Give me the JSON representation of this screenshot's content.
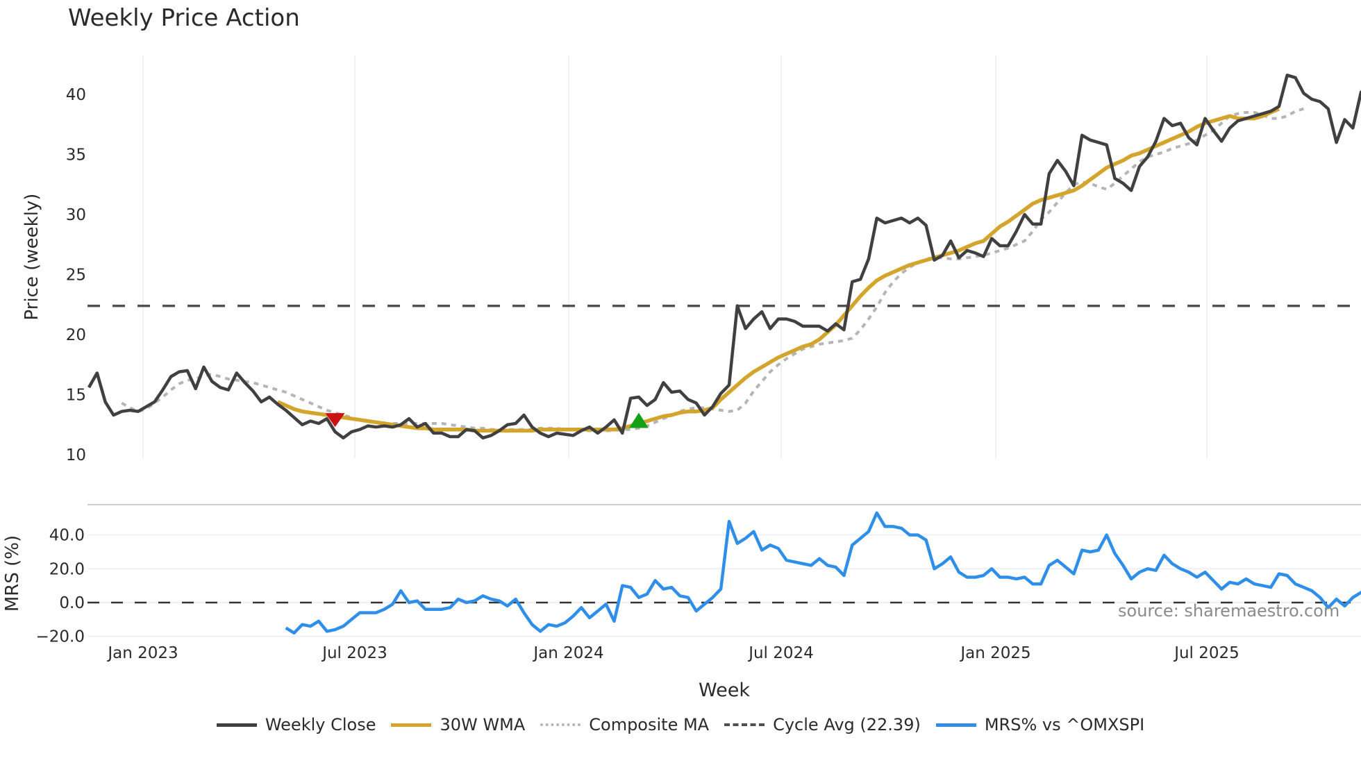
{
  "title": "Weekly Price Action",
  "source_note": "source: sharemaestro.com",
  "colors": {
    "weekly_close": "#404040",
    "wma": "#d4a52c",
    "composite_ma": "#b5b5b5",
    "cycle_avg": "#505050",
    "mrs": "#2f8fe8",
    "signal_sell": "#cc1111",
    "signal_buy": "#14a014",
    "grid": "#eef0f5"
  },
  "legend": [
    {
      "key": "weekly_close",
      "label": "Weekly Close",
      "style": "solid"
    },
    {
      "key": "wma",
      "label": "30W WMA",
      "style": "solid"
    },
    {
      "key": "composite_ma",
      "label": "Composite MA",
      "style": "dotted"
    },
    {
      "key": "cycle_avg",
      "label": "Cycle Avg (22.39)",
      "style": "dashed"
    },
    {
      "key": "mrs",
      "label": "MRS% vs ^OMXSPI",
      "style": "solid"
    }
  ],
  "chart_data": [
    {
      "type": "line",
      "title": "Weekly Price Action",
      "xlabel": "Week",
      "ylabel": "Price (weekly)",
      "ylim": [
        10,
        43
      ],
      "yticks": [
        10,
        15,
        20,
        25,
        30,
        35,
        40
      ],
      "xticks": [
        "Jan 2023",
        "Jul 2023",
        "Jan 2024",
        "Jul 2024",
        "Jan 2025",
        "Jul 2025"
      ],
      "grid": true,
      "x_start_week_offset": -7,
      "cycle_avg": 22.39,
      "series": [
        {
          "name": "Weekly Close",
          "values": [
            15.6,
            16.8,
            14.4,
            13.3,
            13.6,
            13.7,
            13.6,
            14.0,
            14.4,
            15.4,
            16.5,
            16.9,
            17.0,
            15.5,
            17.3,
            16.1,
            15.6,
            15.4,
            16.8,
            16.0,
            15.3,
            14.4,
            14.8,
            14.2,
            13.7,
            13.1,
            12.5,
            12.8,
            12.6,
            13.0,
            11.9,
            11.4,
            11.9,
            12.1,
            12.4,
            12.3,
            12.4,
            12.3,
            12.5,
            13.0,
            12.3,
            12.6,
            11.8,
            11.8,
            11.5,
            11.5,
            12.1,
            12.0,
            11.4,
            11.6,
            12.0,
            12.5,
            12.6,
            13.3,
            12.3,
            11.8,
            11.5,
            11.8,
            11.7,
            11.6,
            12.0,
            12.3,
            11.8,
            12.3,
            12.9,
            11.8,
            14.7,
            14.8,
            14.1,
            14.6,
            16.0,
            15.2,
            15.3,
            14.6,
            14.3,
            13.3,
            14.0,
            15.1,
            15.8,
            22.4,
            20.5,
            21.3,
            21.9,
            20.5,
            21.3,
            21.3,
            21.1,
            20.7,
            20.7,
            20.7,
            20.3,
            20.9,
            20.4,
            24.4,
            24.6,
            26.3,
            29.7,
            29.3,
            29.5,
            29.7,
            29.3,
            29.7,
            29.1,
            26.2,
            26.6,
            27.8,
            26.4,
            27.0,
            26.8,
            26.5,
            28.0,
            27.4,
            27.4,
            28.6,
            30.0,
            29.2,
            29.2,
            33.4,
            34.5,
            33.6,
            32.4,
            36.6,
            36.2,
            36.0,
            35.8,
            33.0,
            32.6,
            32.0,
            34.0,
            34.8,
            36.1,
            38.0,
            37.4,
            37.6,
            36.4,
            35.8,
            38.0,
            37.0,
            36.1,
            37.2,
            37.8,
            38.0,
            38.2,
            38.4,
            38.6,
            39.0,
            41.6,
            41.4,
            40.1,
            39.6,
            39.4,
            38.8,
            36.0,
            37.9,
            37.2,
            40.2,
            40.4,
            40.8
          ]
        },
        {
          "name": "30W WMA",
          "start_index": 23,
          "values": [
            14.4,
            14.1,
            13.8,
            13.6,
            13.5,
            13.4,
            13.3,
            13.2,
            13.1,
            13.0,
            12.9,
            12.8,
            12.7,
            12.6,
            12.5,
            12.4,
            12.3,
            12.2,
            12.2,
            12.1,
            12.1,
            12.1,
            12.1,
            12.1,
            12.0,
            12.0,
            12.0,
            12.0,
            12.0,
            12.0,
            12.0,
            12.0,
            12.1,
            12.1,
            12.1,
            12.1,
            12.1,
            12.1,
            12.1,
            12.1,
            12.1,
            12.1,
            12.2,
            12.4,
            12.6,
            12.8,
            13.0,
            13.2,
            13.3,
            13.5,
            13.6,
            13.6,
            13.7,
            13.9,
            14.6,
            15.2,
            15.8,
            16.4,
            16.9,
            17.3,
            17.7,
            18.1,
            18.4,
            18.7,
            19.0,
            19.2,
            19.6,
            20.2,
            20.8,
            21.6,
            22.4,
            23.2,
            23.9,
            24.5,
            24.9,
            25.2,
            25.5,
            25.8,
            26.0,
            26.2,
            26.4,
            26.6,
            26.8,
            27.0,
            27.3,
            27.6,
            27.8,
            28.4,
            29.0,
            29.4,
            29.9,
            30.4,
            30.9,
            31.2,
            31.4,
            31.6,
            31.8,
            32.0,
            32.4,
            32.9,
            33.4,
            33.9,
            34.2,
            34.5,
            34.9,
            35.1,
            35.4,
            35.7,
            36.0,
            36.3,
            36.6,
            36.9,
            37.3,
            37.6,
            37.8,
            38.0,
            38.2,
            38.0,
            38.0,
            38.0,
            38.2,
            38.5,
            38.8
          ]
        },
        {
          "name": "Composite MA",
          "start_index": 4,
          "values": [
            14.3,
            13.9,
            13.6,
            13.8,
            14.3,
            14.8,
            15.4,
            15.9,
            16.2,
            16.3,
            16.6,
            16.7,
            16.5,
            16.3,
            16.2,
            16.1,
            16.0,
            15.8,
            15.6,
            15.4,
            15.2,
            14.9,
            14.6,
            14.3,
            14.0,
            13.7,
            13.5,
            13.3,
            13.1,
            12.9,
            12.8,
            12.7,
            12.6,
            12.6,
            12.6,
            12.6,
            12.6,
            12.6,
            12.6,
            12.6,
            12.5,
            12.4,
            12.3,
            12.2,
            12.2,
            12.1,
            12.1,
            12.1,
            12.1,
            12.1,
            12.1,
            12.2,
            12.2,
            12.2,
            12.1,
            12.1,
            12.0,
            12.0,
            12.0,
            12.0,
            12.0,
            12.1,
            12.1,
            12.2,
            12.4,
            12.7,
            13.0,
            13.3,
            13.6,
            13.8,
            13.9,
            13.9,
            13.8,
            13.7,
            13.6,
            13.7,
            14.3,
            15.3,
            16.1,
            16.9,
            17.5,
            18.0,
            18.4,
            18.8,
            19.0,
            19.2,
            19.3,
            19.4,
            19.5,
            19.7,
            20.4,
            21.3,
            22.3,
            23.5,
            24.4,
            25.1,
            25.6,
            26.0,
            26.3,
            26.4,
            26.4,
            26.3,
            26.3,
            26.4,
            26.5,
            26.6,
            26.8,
            27.0,
            27.2,
            27.5,
            27.8,
            28.6,
            29.6,
            30.2,
            31.0,
            31.8,
            32.5,
            32.7,
            32.6,
            32.3,
            32.1,
            32.6,
            33.2,
            33.8,
            34.4,
            34.8,
            35.0,
            35.2,
            35.5,
            35.7,
            35.9,
            36.2,
            36.6,
            37.0,
            37.6,
            38.2,
            38.4,
            38.5,
            38.5,
            38.3,
            38.0,
            38.0,
            38.2,
            38.6,
            38.8
          ]
        }
      ],
      "markers": [
        {
          "type": "sell",
          "shape": "triangle-down",
          "week_index": 30,
          "value": 13.0
        },
        {
          "type": "buy",
          "shape": "triangle-up",
          "week_index": 67,
          "value": 12.8
        }
      ]
    },
    {
      "type": "line",
      "title": "",
      "xlabel": "Week",
      "ylabel": "MRS (%)",
      "ylim": [
        -24,
        56
      ],
      "yticks": [
        -20.0,
        0.0,
        20.0,
        40.0
      ],
      "ytick_labels": [
        "−20.0",
        "0.0",
        "20.0",
        "40.0"
      ],
      "reference_line": 0,
      "series": [
        {
          "name": "MRS% vs ^OMXSPI",
          "start_index": 24,
          "values": [
            -15,
            -18,
            -13,
            -14,
            -11,
            -17,
            -16,
            -14,
            -10,
            -6,
            -6,
            -6,
            -4,
            -1,
            7,
            0,
            1,
            -4,
            -4,
            -4,
            -3,
            2,
            0,
            1,
            4,
            2,
            1,
            -2,
            2,
            -6,
            -13,
            -17,
            -13,
            -14,
            -12,
            -8,
            -3,
            -9,
            -5,
            -1,
            -11,
            10,
            9,
            3,
            5,
            13,
            8,
            9,
            4,
            3,
            -5,
            -1,
            3,
            8,
            48,
            35,
            38,
            42,
            31,
            34,
            32,
            25,
            24,
            23,
            22,
            26,
            22,
            21,
            16,
            34,
            38,
            42,
            53,
            45,
            45,
            44,
            40,
            40,
            37,
            20,
            23,
            27,
            18,
            15,
            15,
            16,
            20,
            15,
            15,
            14,
            15,
            11,
            11,
            22,
            25,
            21,
            17,
            31,
            30,
            31,
            40,
            29,
            22,
            14,
            18,
            20,
            19,
            28,
            23,
            20,
            18,
            15,
            18,
            13,
            8,
            12,
            11,
            14,
            11,
            10,
            9,
            17,
            16,
            11,
            9,
            7,
            3,
            -3,
            2,
            -2,
            3,
            6,
            5
          ]
        }
      ]
    }
  ],
  "axes": {
    "price_ylabel": "Price (weekly)",
    "mrs_ylabel": "MRS (%)",
    "xlabel": "Week",
    "price_ticks": [
      "40",
      "35",
      "30",
      "25",
      "20",
      "15",
      "10"
    ],
    "mrs_ticks": [
      "40.0",
      "20.0",
      "0.0",
      "−20.0"
    ],
    "x_ticks": [
      "Jan 2023",
      "Jul 2023",
      "Jan 2024",
      "Jul 2024",
      "Jan 2025",
      "Jul 2025"
    ]
  }
}
